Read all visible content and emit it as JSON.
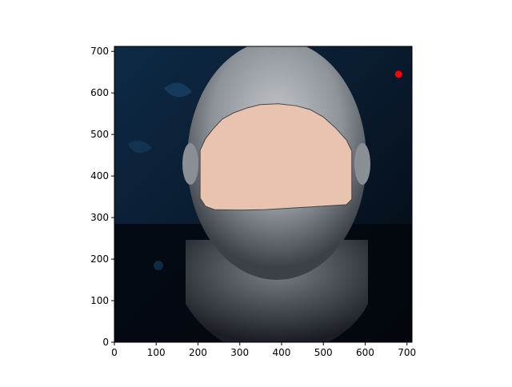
{
  "chart_data": {
    "type": "scatter",
    "title": "",
    "xlabel": "",
    "ylabel": "",
    "xlim": [
      0,
      712
    ],
    "ylim": [
      0,
      712
    ],
    "xticks": [
      0,
      100,
      200,
      300,
      400,
      500,
      600,
      700
    ],
    "yticks": [
      0,
      100,
      200,
      300,
      400,
      500,
      600,
      700
    ],
    "grid": false,
    "legend": "none",
    "background_image": "face-photo-bald-man-on-dark-blue-background",
    "colors": {
      "image_bg_dark": "#040b14",
      "image_bg_blue": "#0d2a45",
      "skin_gray": "#a9adb2",
      "mask_fill": "#e8c4b0",
      "mask_stroke": "#444444",
      "point": "#ff0000",
      "axis": "#000000"
    },
    "mask_outline": [
      [
        205,
        250
      ],
      [
        205,
        365
      ],
      [
        218,
        385
      ],
      [
        240,
        393
      ],
      [
        300,
        394
      ],
      [
        360,
        393
      ],
      [
        410,
        390
      ],
      [
        555,
        381
      ],
      [
        568,
        368
      ],
      [
        568,
        252
      ],
      [
        555,
        225
      ],
      [
        528,
        195
      ],
      [
        500,
        170
      ],
      [
        468,
        152
      ],
      [
        435,
        143
      ],
      [
        392,
        138
      ],
      [
        350,
        140
      ],
      [
        318,
        148
      ],
      [
        285,
        160
      ],
      [
        258,
        175
      ],
      [
        235,
        200
      ],
      [
        218,
        222
      ]
    ],
    "points": [
      {
        "x": 680,
        "y": 645
      }
    ]
  }
}
